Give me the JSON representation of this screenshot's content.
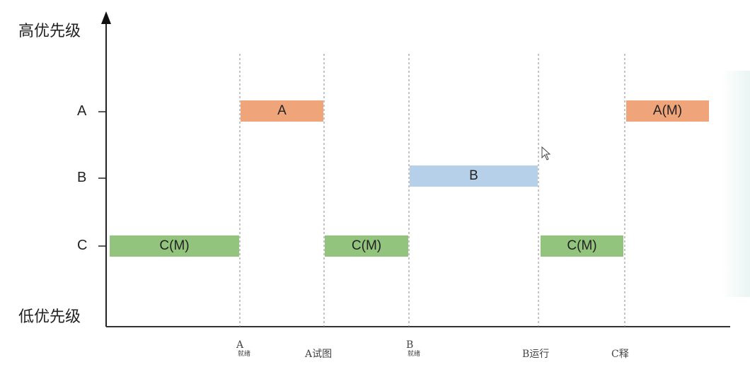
{
  "y_axis": {
    "top_label": "高优先级",
    "bottom_label": "低优先级"
  },
  "levels": [
    "A",
    "B",
    "C"
  ],
  "bars": [
    {
      "level": "C",
      "label": "C(M)",
      "start": 0,
      "end": 1,
      "color": "#93c47d"
    },
    {
      "level": "A",
      "label": "A",
      "start": 1,
      "end": 2,
      "color": "#f0a47a"
    },
    {
      "level": "C",
      "label": "C(M)",
      "start": 2,
      "end": 3,
      "color": "#93c47d"
    },
    {
      "level": "B",
      "label": "B",
      "start": 3,
      "end": 4,
      "color": "#b7d0ea"
    },
    {
      "level": "C",
      "label": "C(M)",
      "start": 4,
      "end": 5,
      "color": "#93c47d"
    },
    {
      "level": "A",
      "label": "A(M)",
      "start": 5,
      "end": 6,
      "color": "#f0a47a"
    }
  ],
  "events": [
    {
      "label": "A",
      "sub": "就绪"
    },
    {
      "label": "A试图",
      "sub": ""
    },
    {
      "label": "B",
      "sub": "就绪"
    },
    {
      "label": "B运行",
      "sub": ""
    },
    {
      "label": "C释",
      "sub": ""
    }
  ]
}
